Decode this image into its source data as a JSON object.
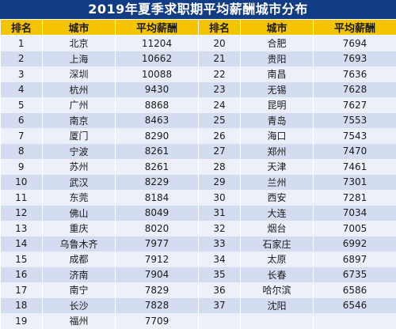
{
  "title": "2019年夏季求职期平均薪酬城市分布",
  "headers": [
    "排名",
    "城市",
    "平均薪酬",
    "排名",
    "城市",
    "平均薪酬"
  ],
  "rows": [
    {
      "r1": "1",
      "c1": "北京",
      "s1": "11204",
      "r2": "20",
      "c2": "合肥",
      "s2": "7694"
    },
    {
      "r1": "2",
      "c1": "上海",
      "s1": "10662",
      "r2": "21",
      "c2": "贵阳",
      "s2": "7693"
    },
    {
      "r1": "3",
      "c1": "深圳",
      "s1": "10088",
      "r2": "22",
      "c2": "南昌",
      "s2": "7636"
    },
    {
      "r1": "4",
      "c1": "杭州",
      "s1": "9430",
      "r2": "23",
      "c2": "无锡",
      "s2": "7628"
    },
    {
      "r1": "5",
      "c1": "广州",
      "s1": "8868",
      "r2": "24",
      "c2": "昆明",
      "s2": "7627"
    },
    {
      "r1": "6",
      "c1": "南京",
      "s1": "8463",
      "r2": "25",
      "c2": "青岛",
      "s2": "7553"
    },
    {
      "r1": "7",
      "c1": "厦门",
      "s1": "8290",
      "r2": "26",
      "c2": "海口",
      "s2": "7543"
    },
    {
      "r1": "8",
      "c1": "宁波",
      "s1": "8261",
      "r2": "27",
      "c2": "郑州",
      "s2": "7470"
    },
    {
      "r1": "9",
      "c1": "苏州",
      "s1": "8261",
      "r2": "28",
      "c2": "天津",
      "s2": "7461"
    },
    {
      "r1": "10",
      "c1": "武汉",
      "s1": "8229",
      "r2": "29",
      "c2": "兰州",
      "s2": "7301"
    },
    {
      "r1": "11",
      "c1": "东莞",
      "s1": "8184",
      "r2": "30",
      "c2": "西安",
      "s2": "7281"
    },
    {
      "r1": "12",
      "c1": "佛山",
      "s1": "8049",
      "r2": "31",
      "c2": "大连",
      "s2": "7034"
    },
    {
      "r1": "13",
      "c1": "重庆",
      "s1": "8020",
      "r2": "32",
      "c2": "烟台",
      "s2": "7005"
    },
    {
      "r1": "14",
      "c1": "乌鲁木齐",
      "s1": "7977",
      "r2": "33",
      "c2": "石家庄",
      "s2": "6992"
    },
    {
      "r1": "15",
      "c1": "成都",
      "s1": "7912",
      "r2": "34",
      "c2": "太原",
      "s2": "6897"
    },
    {
      "r1": "16",
      "c1": "济南",
      "s1": "7904",
      "r2": "35",
      "c2": "长春",
      "s2": "6735"
    },
    {
      "r1": "17",
      "c1": "南宁",
      "s1": "7829",
      "r2": "36",
      "c2": "哈尔滨",
      "s2": "6586"
    },
    {
      "r1": "18",
      "c1": "长沙",
      "s1": "7828",
      "r2": "37",
      "c2": "沈阳",
      "s2": "6546"
    },
    {
      "r1": "19",
      "c1": "福州",
      "s1": "7709",
      "r2": "",
      "c2": "",
      "s2": ""
    }
  ]
}
